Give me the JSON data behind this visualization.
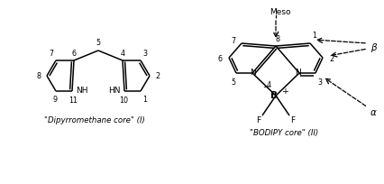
{
  "bg_color": "#ffffff",
  "line_color": "#000000",
  "label_dipyrromethane": "\"Dipyrromethane core\" (I)",
  "label_bodipy": "\"BODIPY core\" (II)",
  "label_meso": "Meso",
  "label_alpha": "α",
  "label_beta": "β",
  "fs": 6.5,
  "fs_small": 5.8,
  "fs_greek": 7.5,
  "lw": 1.1,
  "lw_dbl": 1.1
}
